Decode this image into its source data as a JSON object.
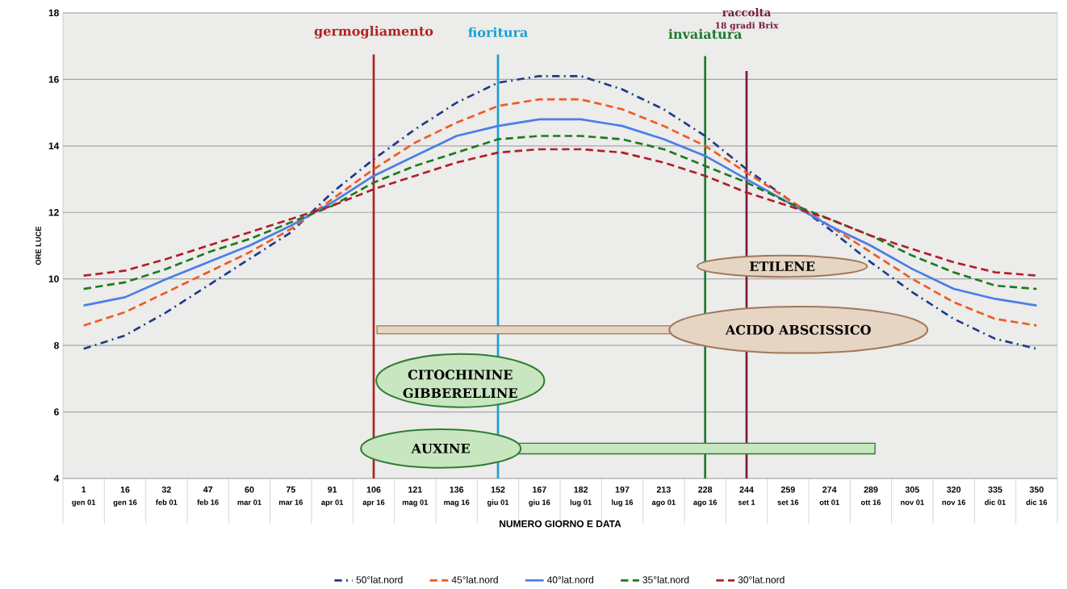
{
  "chart_data": {
    "type": "line",
    "xlabel": "NUMERO GIORNO E DATA",
    "ylabel": "ORE LUCE",
    "categories": [
      "1",
      "16",
      "32",
      "47",
      "60",
      "75",
      "91",
      "106",
      "121",
      "136",
      "152",
      "167",
      "182",
      "197",
      "213",
      "228",
      "244",
      "259",
      "274",
      "289",
      "305",
      "320",
      "335",
      "350"
    ],
    "series": [
      {
        "name": "50°lat.nord",
        "color": "#1f3a8a",
        "line_style": "dashdot",
        "values": [
          7.9,
          8.3,
          9.0,
          9.8,
          10.6,
          11.4,
          12.6,
          13.6,
          14.5,
          15.3,
          15.9,
          16.1,
          16.1,
          15.7,
          15.1,
          14.3,
          13.3,
          12.4,
          11.5,
          10.5,
          9.6,
          8.8,
          8.2,
          7.9
        ]
      },
      {
        "name": "45°lat.nord",
        "color": "#f05a22",
        "line_style": "dashed",
        "values": [
          8.6,
          9.0,
          9.6,
          10.2,
          10.8,
          11.5,
          12.4,
          13.3,
          14.1,
          14.7,
          15.2,
          15.4,
          15.4,
          15.1,
          14.6,
          14.0,
          13.2,
          12.4,
          11.6,
          10.8,
          10.0,
          9.3,
          8.8,
          8.6
        ]
      },
      {
        "name": "40°lat.nord",
        "color": "#4a7ee8",
        "line_style": "solid",
        "values": [
          9.2,
          9.45,
          10.0,
          10.5,
          11.0,
          11.6,
          12.3,
          13.1,
          13.7,
          14.3,
          14.6,
          14.8,
          14.8,
          14.6,
          14.2,
          13.7,
          13.0,
          12.3,
          11.6,
          11.0,
          10.3,
          9.7,
          9.4,
          9.2
        ]
      },
      {
        "name": "35°lat.nord",
        "color": "#1e7a1e",
        "line_style": "dashed",
        "values": [
          9.7,
          9.9,
          10.3,
          10.8,
          11.2,
          11.7,
          12.2,
          12.9,
          13.4,
          13.8,
          14.2,
          14.3,
          14.3,
          14.2,
          13.9,
          13.4,
          12.9,
          12.3,
          11.8,
          11.3,
          10.7,
          10.2,
          9.8,
          9.7
        ]
      },
      {
        "name": "30°lat.nord",
        "color": "#b01e2a",
        "line_style": "dashed",
        "values": [
          10.1,
          10.25,
          10.6,
          11.0,
          11.4,
          11.8,
          12.2,
          12.7,
          13.1,
          13.5,
          13.8,
          13.9,
          13.9,
          13.8,
          13.5,
          13.1,
          12.6,
          12.2,
          11.8,
          11.3,
          10.9,
          10.5,
          10.2,
          10.1
        ]
      }
    ],
    "ylim": [
      4,
      18
    ],
    "yticks": [
      4,
      6,
      8,
      10,
      12,
      14,
      16,
      18
    ],
    "grid": "y",
    "legend": "bottom",
    "marker": "none",
    "ref_lines": [
      {
        "axis": "x",
        "value": "106",
        "label": "germogliamento",
        "color": "#b22222"
      },
      {
        "axis": "x",
        "value": "152",
        "label": "fioritura",
        "color": "#1ca0d0"
      },
      {
        "axis": "x",
        "value": "228",
        "label": "invaiatura",
        "color": "#1e7a30"
      },
      {
        "axis": "x",
        "value": "244",
        "label": "raccolta",
        "color": "#7a1a3a"
      }
    ],
    "annotations": [
      "18 gradi Brix",
      "ETILENE",
      "ACIDO ABSCISSICO",
      "CITOCHININE",
      "GIBBERELLINE",
      "AUXINE",
      "gen 01",
      "gen 16",
      "feb 01",
      "feb 16",
      "mar 01",
      "mar 16",
      "apr 01",
      "apr 16",
      "mag 01",
      "mag 16",
      "giu 01",
      "giu 16",
      "lug 01",
      "lug 16",
      "ago 01",
      "ago 16",
      "set 1",
      "set 16",
      "ott 01",
      "ott 16",
      "nov 01",
      "nov 16",
      "dic 01",
      "dic 16"
    ]
  }
}
